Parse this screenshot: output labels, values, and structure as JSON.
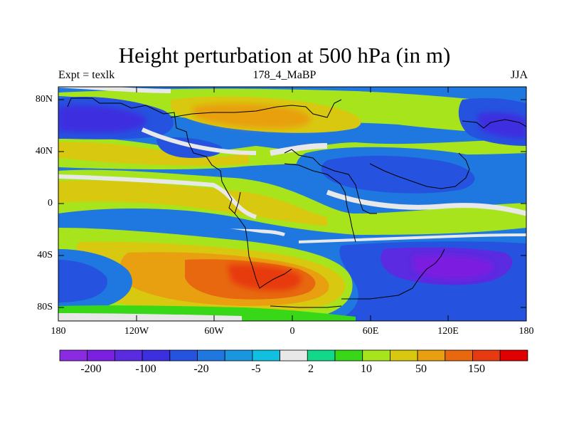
{
  "plot": {
    "title": "Height perturbation at 500 hPa (in m)",
    "left_label": "Expt = texlk",
    "center_label": "178_4_MaBP",
    "right_label": "JJA"
  },
  "axes": {
    "y_ticks": [
      "80N",
      "40N",
      "0",
      "40S",
      "80S"
    ],
    "x_ticks": [
      "180",
      "120W",
      "60W",
      "0",
      "60E",
      "120E",
      "180"
    ]
  },
  "colorbar": {
    "colors": [
      "#8a2be2",
      "#7b1fe0",
      "#5a2be0",
      "#3c2fe0",
      "#2553df",
      "#1f77e0",
      "#1a96e0",
      "#0fc0e0",
      "#e8e8e8",
      "#12d98a",
      "#38d818",
      "#a8e41c",
      "#d9c810",
      "#e8a010",
      "#e86810",
      "#e83a10",
      "#e00000"
    ],
    "labels": [
      "-200",
      "-100",
      "-20",
      "-5",
      "2",
      "10",
      "50",
      "150"
    ]
  }
}
